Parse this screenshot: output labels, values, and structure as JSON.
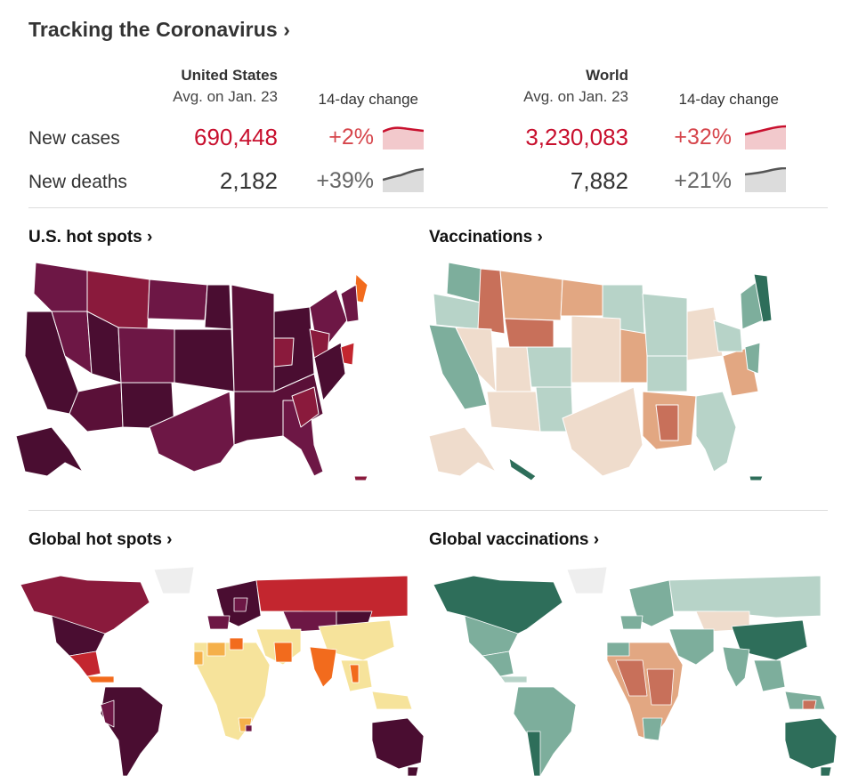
{
  "header": {
    "title": "Tracking the Coronavirus ›"
  },
  "stats": {
    "us_heading": "United States",
    "us_sub": "Avg. on Jan. 23",
    "world_heading": "World",
    "world_sub": "Avg. on Jan. 23",
    "change_label": "14-day change",
    "rows": {
      "cases_label": "New cases",
      "deaths_label": "New deaths"
    },
    "us": {
      "cases": "690,448",
      "cases_change": "+2%",
      "deaths": "2,182",
      "deaths_change": "+39%"
    },
    "world": {
      "cases": "3,230,083",
      "cases_change": "+32%",
      "deaths": "7,882",
      "deaths_change": "+21%"
    }
  },
  "maps": {
    "us_hotspots": "U.S. hot spots ›",
    "vaccinations": "Vaccinations ›",
    "global_hotspots": "Global hot spots ›",
    "global_vaccinations": "Global vaccinations ›"
  },
  "colors": {
    "hot_dark": "#4a0d31",
    "hot_mid": "#6d1745",
    "hot_red": "#c3262f",
    "hot_orange": "#f26b1d",
    "hot_yellow": "#f6e39b",
    "vac_green": "#2e6e5a",
    "vac_teal": "#7dae9c",
    "vac_light": "#b7d3c8",
    "vac_peach": "#efdccc",
    "vac_tan": "#e2a782",
    "vac_rust": "#c8705a"
  }
}
